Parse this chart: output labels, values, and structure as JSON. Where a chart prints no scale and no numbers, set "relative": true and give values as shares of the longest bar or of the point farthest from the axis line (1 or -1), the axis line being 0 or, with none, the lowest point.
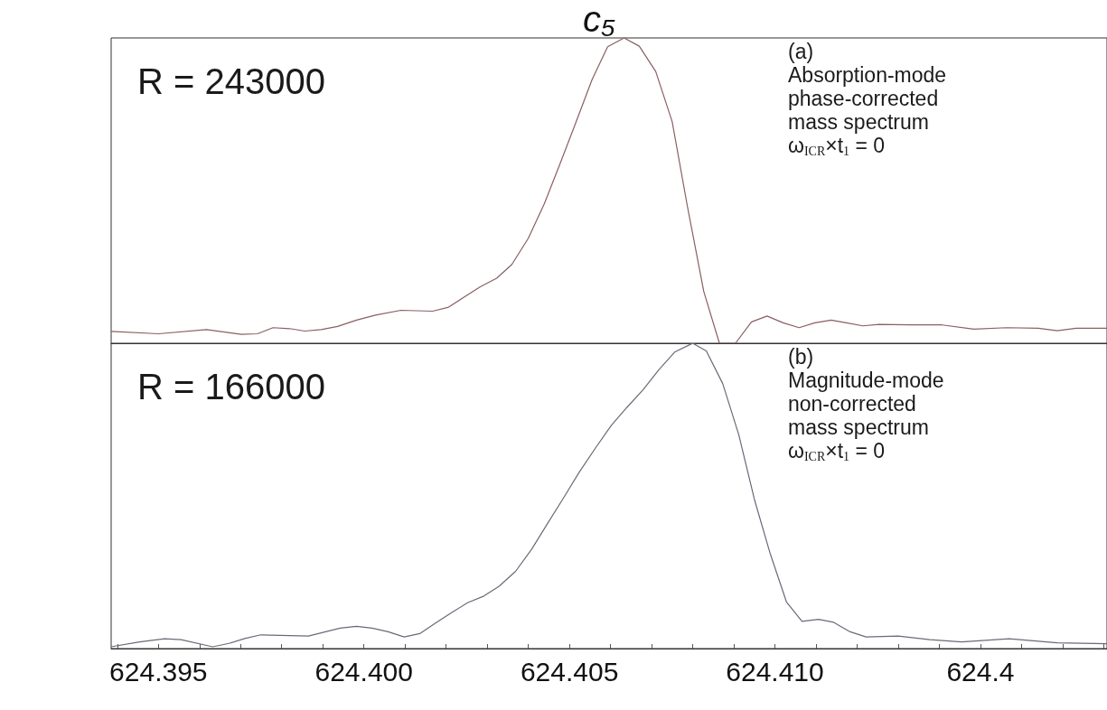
{
  "chart_data": [
    {
      "type": "line",
      "title": "c₅",
      "relative": true,
      "tick_labels": false,
      "marker": "none",
      "xlim": [
        624.39385,
        624.41808
      ],
      "annotations": [
        "R = 243000",
        "(a)",
        "Absorption-mode",
        "phase-corrected",
        "mass spectrum",
        "ω$_{ICR}$×t$_{1}$ = 0"
      ],
      "series": [
        {
          "color": "#8a5f62",
          "x": [
            624.39385,
            624.395,
            624.39617,
            624.39702,
            624.39741,
            624.39779,
            624.39819,
            624.39856,
            624.39896,
            624.39936,
            624.39982,
            624.40028,
            624.4009,
            624.40167,
            624.40206,
            624.40246,
            624.40283,
            624.40323,
            624.4036,
            624.404,
            624.40439,
            624.40477,
            624.40516,
            624.40555,
            624.40593,
            624.40633,
            624.4067,
            624.4071,
            624.4075,
            624.40787,
            624.40827,
            624.40865,
            624.40904,
            624.40943,
            624.40981,
            624.4102,
            624.41059,
            624.41097,
            624.41137,
            624.41174,
            624.41214,
            624.41253,
            624.4133,
            624.41407,
            624.41484,
            624.41564,
            624.41641,
            624.41687,
            624.41733,
            624.41808
          ],
          "values": [
            0.039,
            0.031,
            0.045,
            0.029,
            0.031,
            0.051,
            0.048,
            0.04,
            0.045,
            0.055,
            0.076,
            0.092,
            0.108,
            0.105,
            0.118,
            0.153,
            0.185,
            0.213,
            0.258,
            0.344,
            0.457,
            0.587,
            0.724,
            0.863,
            0.971,
            1,
            0.973,
            0.89,
            0.726,
            0.449,
            0.169,
            0,
            0,
            0.07,
            0.089,
            0.067,
            0.051,
            0.067,
            0.076,
            0.067,
            0.057,
            0.062,
            0.06,
            0.06,
            0.046,
            0.051,
            0.049,
            0.041,
            0.049,
            0.049
          ]
        }
      ]
    },
    {
      "type": "line",
      "relative": true,
      "tick_labels": "x",
      "marker": "none",
      "xlim": [
        624.39385,
        624.41808
      ],
      "xticks": [
        {
          "value": 624.394,
          "label": null
        },
        624.395,
        {
          "value": 624.396,
          "label": null
        },
        {
          "value": 624.397,
          "label": null
        },
        {
          "value": 624.398,
          "label": null
        },
        {
          "value": 624.399,
          "label": null
        },
        {
          "value": 624.4,
          "label": "624.400"
        },
        {
          "value": 624.401,
          "label": null
        },
        {
          "value": 624.402,
          "label": null
        },
        {
          "value": 624.403,
          "label": null
        },
        {
          "value": 624.404,
          "label": null
        },
        624.405,
        {
          "value": 624.406,
          "label": null
        },
        {
          "value": 624.407,
          "label": null
        },
        {
          "value": 624.408,
          "label": null
        },
        {
          "value": 624.409,
          "label": null
        },
        {
          "value": 624.41,
          "label": "624.410"
        },
        {
          "value": 624.411,
          "label": null
        },
        {
          "value": 624.412,
          "label": null
        },
        {
          "value": 624.413,
          "label": null
        },
        {
          "value": 624.414,
          "label": null
        },
        {
          "value": 624.415,
          "label": "624.4"
        },
        {
          "value": 624.416,
          "label": null
        },
        {
          "value": 624.417,
          "label": null
        },
        {
          "value": 624.418,
          "label": null
        }
      ],
      "annotations": [
        "R = 166000",
        "(b)",
        "Magnitude-mode",
        "non-corrected",
        "mass spectrum",
        "ω$_{ICR}$×t$_{1}$ = 0"
      ],
      "series": [
        {
          "color": "#6a6a78",
          "x": [
            624.39385,
            624.39454,
            624.39515,
            624.39555,
            624.39632,
            624.39672,
            624.3971,
            624.39749,
            624.39865,
            624.39942,
            624.39982,
            624.4002,
            624.40059,
            624.40098,
            624.40136,
            624.40175,
            624.40214,
            624.40252,
            624.40292,
            624.40329,
            624.40369,
            624.40408,
            624.40446,
            624.40486,
            624.40524,
            624.40563,
            624.40602,
            624.4064,
            624.40679,
            624.40718,
            624.40756,
            624.408,
            624.40833,
            624.40873,
            624.40912,
            624.4095,
            624.40989,
            624.41028,
            624.41066,
            624.41106,
            624.41143,
            624.41183,
            624.41222,
            624.413,
            624.41377,
            624.41454,
            624.4157,
            624.41687,
            624.41808
          ],
          "values": [
            0.006,
            0.022,
            0.032,
            0.029,
            0.006,
            0.017,
            0.033,
            0.045,
            0.041,
            0.067,
            0.073,
            0.067,
            0.055,
            0.038,
            0.049,
            0.084,
            0.118,
            0.15,
            0.172,
            0.204,
            0.253,
            0.325,
            0.408,
            0.494,
            0.578,
            0.656,
            0.731,
            0.79,
            0.847,
            0.914,
            0.971,
            1,
            0.975,
            0.868,
            0.701,
            0.489,
            0.309,
            0.153,
            0.089,
            0.096,
            0.086,
            0.055,
            0.038,
            0.041,
            0.029,
            0.022,
            0.032,
            0.019,
            0.016
          ]
        }
      ]
    }
  ]
}
